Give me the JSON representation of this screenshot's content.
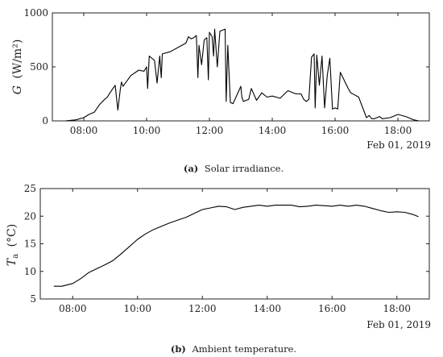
{
  "chart_data": [
    {
      "type": "line",
      "panel": "a",
      "caption_label": "(a)",
      "caption_text": "Solar irradiance.",
      "ylabel_symbol": "G",
      "ylabel_unit": "(W/m²)",
      "date_note": "Feb 01, 2019",
      "xlim": [
        "07:00",
        "19:00"
      ],
      "ylim": [
        0,
        1000
      ],
      "xticks": [
        "08:00",
        "10:00",
        "12:00",
        "14:00",
        "16:00",
        "18:00"
      ],
      "yticks": [
        0,
        500,
        1000
      ],
      "series": [
        {
          "x": [
            "07:25",
            "07:45",
            "08:00",
            "08:10",
            "08:20",
            "08:30",
            "08:40",
            "08:45",
            "08:50",
            "09:00",
            "09:05",
            "09:10",
            "09:12",
            "09:15",
            "09:30",
            "09:45",
            "09:55",
            "10:00",
            "10:02",
            "10:05",
            "10:15",
            "10:20",
            "10:25",
            "10:28",
            "10:30",
            "10:45",
            "11:00",
            "11:15",
            "11:20",
            "11:25",
            "11:30",
            "11:35",
            "11:38",
            "11:40",
            "11:45",
            "11:50",
            "11:55",
            "11:58",
            "12:00",
            "12:05",
            "12:08",
            "12:10",
            "12:15",
            "12:20",
            "12:30",
            "12:32",
            "12:35",
            "12:40",
            "12:45",
            "13:00",
            "13:02",
            "13:05",
            "13:15",
            "13:20",
            "13:30",
            "13:40",
            "13:50",
            "14:00",
            "14:15",
            "14:30",
            "14:45",
            "14:55",
            "15:00",
            "15:05",
            "15:10",
            "15:15",
            "15:20",
            "15:22",
            "15:25",
            "15:30",
            "15:35",
            "15:40",
            "15:45",
            "15:50",
            "15:55",
            "16:00",
            "16:05",
            "16:10",
            "16:15",
            "16:20",
            "16:25",
            "16:30",
            "16:45",
            "17:00",
            "17:05",
            "17:10",
            "17:15",
            "17:25",
            "17:30",
            "17:45",
            "18:00",
            "18:15",
            "18:30",
            "18:40"
          ],
          "y": [
            0,
            10,
            30,
            60,
            80,
            150,
            200,
            220,
            260,
            330,
            100,
            300,
            360,
            320,
            420,
            470,
            460,
            500,
            300,
            600,
            560,
            350,
            600,
            400,
            620,
            640,
            680,
            720,
            780,
            760,
            770,
            790,
            400,
            700,
            520,
            750,
            770,
            380,
            820,
            780,
            600,
            850,
            500,
            830,
            850,
            180,
            700,
            170,
            160,
            320,
            220,
            180,
            200,
            300,
            190,
            260,
            220,
            230,
            210,
            280,
            250,
            250,
            200,
            180,
            200,
            590,
            620,
            120,
            610,
            330,
            600,
            120,
            420,
            580,
            110,
            120,
            110,
            450,
            400,
            350,
            300,
            260,
            220,
            30,
            50,
            20,
            20,
            40,
            20,
            30,
            60,
            40,
            10,
            0
          ]
        }
      ]
    },
    {
      "type": "line",
      "panel": "b",
      "caption_label": "(b)",
      "caption_text": "Ambient temperature.",
      "ylabel_symbol": "T",
      "ylabel_sub": "a",
      "ylabel_unit": "(°C)",
      "date_note": "Feb 01, 2019",
      "xlim": [
        "07:00",
        "19:00"
      ],
      "ylim": [
        5,
        25
      ],
      "xticks": [
        "08:00",
        "10:00",
        "12:00",
        "14:00",
        "16:00",
        "18:00"
      ],
      "yticks": [
        5,
        10,
        15,
        20,
        25
      ],
      "series": [
        {
          "x": [
            "07:25",
            "07:40",
            "08:00",
            "08:15",
            "08:30",
            "08:45",
            "09:00",
            "09:15",
            "09:30",
            "09:45",
            "10:00",
            "10:15",
            "10:30",
            "10:45",
            "11:00",
            "11:15",
            "11:30",
            "11:45",
            "12:00",
            "12:15",
            "12:30",
            "12:45",
            "13:00",
            "13:15",
            "13:30",
            "13:45",
            "14:00",
            "14:15",
            "14:30",
            "14:45",
            "15:00",
            "15:15",
            "15:30",
            "15:45",
            "16:00",
            "16:15",
            "16:30",
            "16:45",
            "17:00",
            "17:15",
            "17:30",
            "17:45",
            "18:00",
            "18:15",
            "18:30",
            "18:40"
          ],
          "y": [
            7.3,
            7.3,
            7.8,
            8.7,
            9.8,
            10.5,
            11.2,
            12.0,
            13.2,
            14.5,
            15.8,
            16.8,
            17.6,
            18.2,
            18.8,
            19.3,
            19.8,
            20.5,
            21.2,
            21.5,
            21.8,
            21.7,
            21.2,
            21.6,
            21.8,
            22.0,
            21.8,
            22.0,
            22.0,
            22.0,
            21.7,
            21.8,
            22.0,
            21.9,
            21.8,
            22.0,
            21.8,
            22.0,
            21.8,
            21.4,
            21.0,
            20.7,
            20.8,
            20.7,
            20.3,
            19.9
          ]
        }
      ]
    }
  ]
}
